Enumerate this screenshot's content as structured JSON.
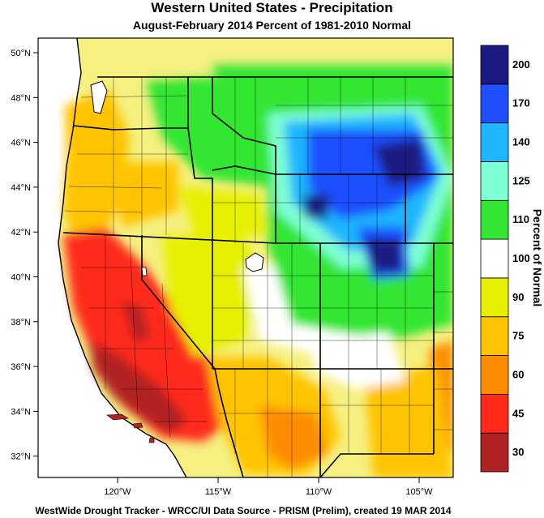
{
  "title": "Western United States - Precipitation",
  "subtitle": "August-February 2014  Percent of 1981-2010 Normal",
  "footer": "WestWide Drought Tracker - WRCC/UI  Data Source - PRISM (Prelim), created 19 MAR 2014",
  "colorbar": {
    "label": "Percent of Normal",
    "ticks": [
      "30",
      "45",
      "60",
      "75",
      "90",
      "100",
      "110",
      "125",
      "140",
      "170",
      "200"
    ],
    "colors": [
      "#b22222",
      "#ff2a1a",
      "#ff8c00",
      "#ffc400",
      "#e6f000",
      "#ffffff",
      "#33e633",
      "#7fffd4",
      "#1fb6ff",
      "#1f4fff",
      "#1a1a80"
    ]
  },
  "lat_labels": [
    "50°N",
    "48°N",
    "46°N",
    "44°N",
    "42°N",
    "40°N",
    "38°N",
    "36°N",
    "34°N",
    "32°N"
  ],
  "lon_labels": [
    "120°W",
    "115°W",
    "110°W",
    "105°W"
  ]
}
